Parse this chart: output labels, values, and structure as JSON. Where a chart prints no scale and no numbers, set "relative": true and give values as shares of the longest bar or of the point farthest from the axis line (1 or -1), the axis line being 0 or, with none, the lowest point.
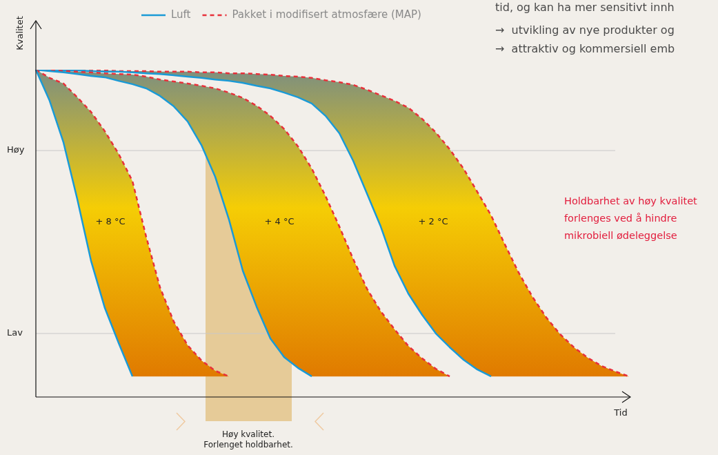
{
  "chart_data": {
    "type": "line",
    "relative": true,
    "xlabel": "Tid",
    "ylabel": "Kvalitet",
    "legend": "top",
    "categories": [
      null,
      null,
      null,
      null,
      null,
      null,
      null,
      null,
      null,
      null,
      null,
      null,
      null,
      null,
      null,
      null,
      null,
      null,
      null,
      null,
      null,
      null,
      null,
      null,
      null,
      null,
      null,
      null,
      null,
      null,
      null,
      null,
      null,
      null,
      null,
      null,
      null,
      null,
      null,
      null,
      null,
      null,
      null,
      null
    ],
    "series": [
      {
        "name": "Luft",
        "color": "#1a9ad6",
        "line_style": "solid",
        "values": [
          1,
          0.905,
          0.778,
          0.605,
          0.416,
          0.272,
          0.165,
          0.063,
          null,
          null,
          null,
          null,
          null,
          null,
          null,
          null,
          null,
          null,
          null,
          null,
          null,
          null,
          null,
          null,
          null,
          null,
          null,
          null,
          null,
          null,
          null,
          null,
          null,
          null,
          null,
          null,
          null,
          null,
          null,
          null,
          null,
          null,
          null,
          null
        ]
      },
      {
        "name": "Pakket i modifisert atmosfære (MAP)",
        "type": "area",
        "color": "#e8303a",
        "line_style": "dashed",
        "values": [
          1,
          0.975,
          0.958,
          0.916,
          0.871,
          0.812,
          0.743,
          0.66,
          0.489,
          0.335,
          0.23,
          0.158,
          0.112,
          0.08,
          0.063,
          null,
          null,
          null,
          null,
          null,
          null,
          null,
          null,
          null,
          null,
          null,
          null,
          null,
          null,
          null,
          null,
          null,
          null,
          null,
          null,
          null,
          null,
          null,
          null,
          null,
          null,
          null,
          null,
          null
        ]
      },
      {
        "color": "#1a9ad6",
        "line_style": "solid",
        "values": [
          1,
          0.996,
          0.992,
          0.987,
          0.981,
          0.977,
          0.966,
          0.956,
          0.943,
          0.92,
          0.888,
          0.842,
          0.77,
          0.673,
          0.542,
          0.386,
          0.276,
          0.179,
          0.122,
          0.089,
          0.063,
          null,
          null,
          null,
          null,
          null,
          null,
          null,
          null,
          null,
          null,
          null,
          null,
          null,
          null,
          null,
          null,
          null,
          null,
          null,
          null,
          null,
          null,
          null
        ]
      },
      {
        "type": "area",
        "color": "#e8303a",
        "line_style": "dashed",
        "values": [
          1,
          0.998,
          0.996,
          0.994,
          0.992,
          0.989,
          0.987,
          0.985,
          0.979,
          0.97,
          0.964,
          0.958,
          0.951,
          0.943,
          0.93,
          0.914,
          0.89,
          0.859,
          0.819,
          0.766,
          0.698,
          0.614,
          0.521,
          0.422,
          0.331,
          0.262,
          0.207,
          0.156,
          0.118,
          0.086,
          0.063,
          null,
          null,
          null,
          null,
          null,
          null,
          null,
          null,
          null,
          null,
          null,
          null,
          null
        ]
      },
      {
        "color": "#1a9ad6",
        "line_style": "solid",
        "values": [
          1,
          1,
          0.998,
          0.998,
          0.996,
          0.994,
          0.994,
          0.992,
          0.989,
          0.987,
          0.983,
          0.979,
          0.975,
          0.97,
          0.966,
          0.96,
          0.951,
          0.943,
          0.93,
          0.916,
          0.897,
          0.859,
          0.806,
          0.722,
          0.622,
          0.521,
          0.401,
          0.316,
          0.251,
          0.194,
          0.152,
          0.114,
          0.084,
          0.063,
          null,
          null,
          null,
          null,
          null,
          null,
          null,
          null,
          null,
          null
        ]
      },
      {
        "type": "area",
        "color": "#e8303a",
        "line_style": "dashed",
        "values": [
          1,
          1,
          1,
          0.998,
          0.998,
          0.998,
          0.996,
          0.996,
          0.996,
          0.994,
          0.994,
          0.994,
          0.992,
          0.992,
          0.989,
          0.989,
          0.987,
          0.985,
          0.981,
          0.979,
          0.975,
          0.968,
          0.962,
          0.954,
          0.939,
          0.922,
          0.905,
          0.884,
          0.85,
          0.808,
          0.757,
          0.698,
          0.627,
          0.555,
          0.466,
          0.38,
          0.306,
          0.243,
          0.192,
          0.152,
          0.12,
          0.095,
          0.078,
          0.063
        ]
      }
    ],
    "ref_lines": [
      {
        "axis": "y",
        "value": 0.753,
        "label": "Høy",
        "color": "#c8c8c8"
      },
      {
        "axis": "y",
        "value": 0.194,
        "label": "Lav",
        "color": "#c8c8c8"
      }
    ],
    "annotations": [
      "+ 8 °C",
      "+ 4 °C",
      "+ 2 °C",
      "tid, og kan ha mer sensitivt innh",
      "→  utvikling av nye produkter og",
      "→  attraktiv og kommersiell emb",
      "Holdbarhet av høy kvalitet forlenges ved å hindre mikrobiell ødeleggelse",
      "Høy kvalitet. Forlenget holdbarhet."
    ]
  }
}
